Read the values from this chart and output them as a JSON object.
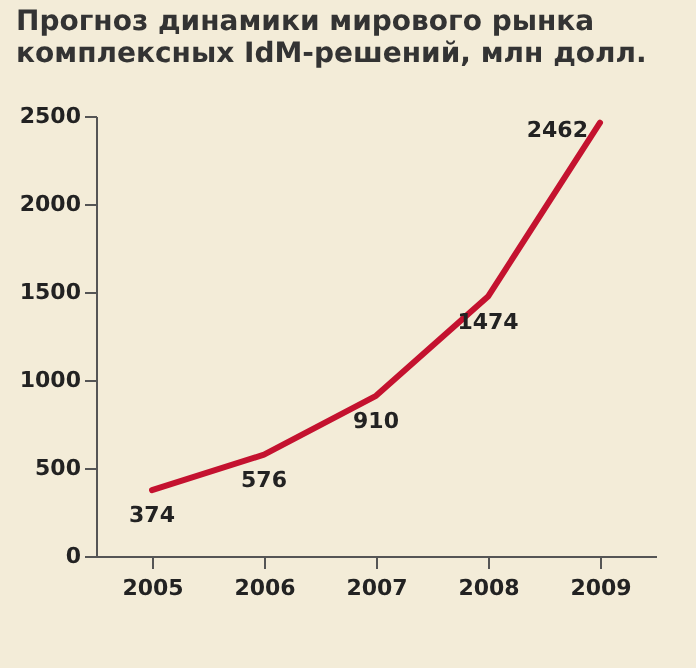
{
  "chart_data": {
    "type": "line",
    "title": "Прогноз динамики мирового рынка комплексных IdM-решений, млн долл.",
    "categories": [
      "2005",
      "2006",
      "2007",
      "2008",
      "2009"
    ],
    "series": [
      {
        "color": "#c4122f",
        "values": [
          374,
          576,
          910,
          1474,
          2462
        ]
      }
    ],
    "ylim": [
      0,
      2500
    ],
    "yticks": [
      0,
      500,
      1000,
      1500,
      2000,
      2500
    ],
    "data_labels": true,
    "grid": false,
    "legend": false,
    "marker": "none",
    "line_style": "solid"
  }
}
